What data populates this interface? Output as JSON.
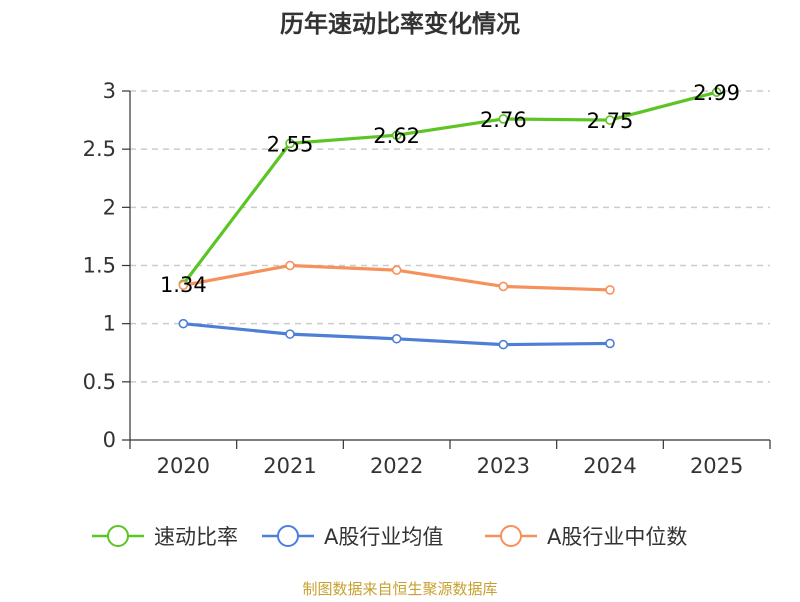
{
  "chart_data": {
    "type": "line",
    "title": "历年速动比率变化情况",
    "xlabel": "",
    "ylabel": "",
    "categories": [
      "2020",
      "2021",
      "2022",
      "2023",
      "2024",
      "2025"
    ],
    "ylim": [
      0,
      3
    ],
    "yticks": [
      "0",
      "0.5",
      "1",
      "1.5",
      "2",
      "2.5",
      "3"
    ],
    "grid": true,
    "legend_position": "bottom",
    "series": [
      {
        "name": "速动比率",
        "color": "#5cc525",
        "values": [
          1.34,
          2.55,
          2.62,
          2.76,
          2.75,
          2.99
        ],
        "labels": [
          "1.34",
          "2.55",
          "2.62",
          "2.76",
          "2.75",
          "2.99"
        ],
        "show_labels": true
      },
      {
        "name": "A股行业均值",
        "color": "#4e7fd7",
        "values": [
          1.0,
          0.91,
          0.87,
          0.82,
          0.83,
          null
        ],
        "show_labels": false
      },
      {
        "name": "A股行业中位数",
        "color": "#f5915c",
        "values": [
          1.33,
          1.5,
          1.46,
          1.32,
          1.29,
          null
        ],
        "show_labels": false
      }
    ],
    "source": "制图数据来自恒生聚源数据库"
  }
}
